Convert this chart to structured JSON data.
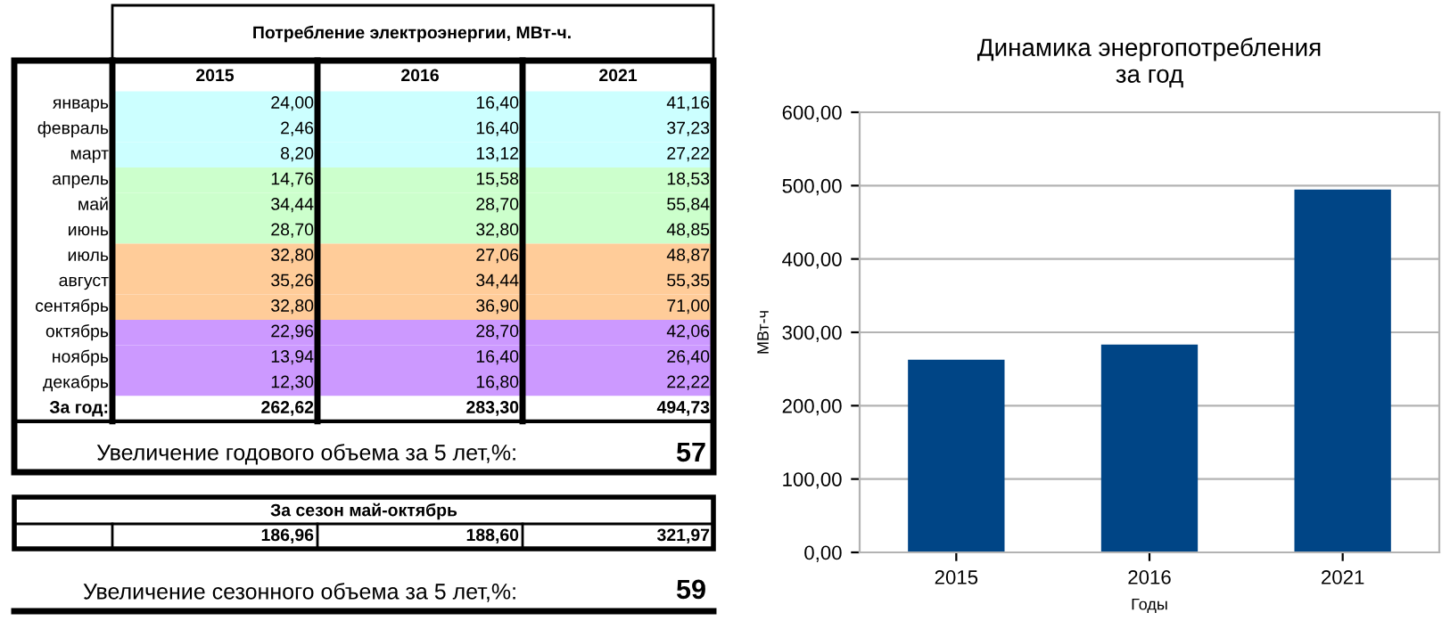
{
  "chart_data": [
    {
      "type": "other",
      "title": "Потребление электроэнергии, МВт-ч.",
      "categories": [
        "2015",
        "2016",
        "2021"
      ],
      "y_categories": [
        "январь",
        "февраль",
        "март",
        "апрель",
        "май",
        "июнь",
        "июль",
        "август",
        "сентябрь",
        "октябрь",
        "ноябрь",
        "декабрь",
        "За год:"
      ],
      "cell_labels": [
        [
          "24,00",
          "16,40",
          "41,16"
        ],
        [
          "2,46",
          "16,40",
          "37,23"
        ],
        [
          "8,20",
          "13,12",
          "27,22"
        ],
        [
          "14,76",
          "15,58",
          "18,53"
        ],
        [
          "34,44",
          "28,70",
          "55,84"
        ],
        [
          "28,70",
          "32,80",
          "48,85"
        ],
        [
          "32,80",
          "27,06",
          "48,87"
        ],
        [
          "35,26",
          "34,44",
          "55,35"
        ],
        [
          "32,80",
          "36,90",
          "71,00"
        ],
        [
          "22,96",
          "28,70",
          "42,06"
        ],
        [
          "13,94",
          "16,40",
          "26,40"
        ],
        [
          "12,30",
          "16,80",
          "22,22"
        ],
        [
          "262,62",
          "283,30",
          "494,73"
        ]
      ],
      "colors": [
        "#ccffff",
        "#ccffff",
        "#ccffff",
        "#ccffcc",
        "#ccffcc",
        "#ccffcc",
        "#ffcc99",
        "#ffcc99",
        "#ffcc99",
        "#cc99ff",
        "#cc99ff",
        "#cc99ff",
        "#ffffff"
      ],
      "annotations": [
        "Увеличение годового объема за 5 лет,%:",
        "57",
        "За сезон май-октябрь",
        "186,96",
        "188,60",
        "321,97",
        "Увеличение сезонного объема за 5 лет,%:",
        "59"
      ]
    },
    {
      "type": "bar",
      "title": "Динамика энергопотребления\nза год",
      "xlabel": "Годы",
      "ylabel": "МВт-ч",
      "categories": [
        "2015",
        "2016",
        "2021"
      ],
      "values": [
        262.62,
        283.3,
        494.73
      ],
      "color": "#004586",
      "ylim": [
        0,
        600
      ],
      "yticks": [
        {
          "value": 0,
          "label": "0,00"
        },
        {
          "value": 100,
          "label": "100,00"
        },
        {
          "value": 200,
          "label": "200,00"
        },
        {
          "value": 300,
          "label": "300,00"
        },
        {
          "value": 400,
          "label": "400,00"
        },
        {
          "value": 500,
          "label": "500,00"
        },
        {
          "value": 600,
          "label": "600,00"
        }
      ],
      "grid": "y",
      "legend": false
    }
  ]
}
